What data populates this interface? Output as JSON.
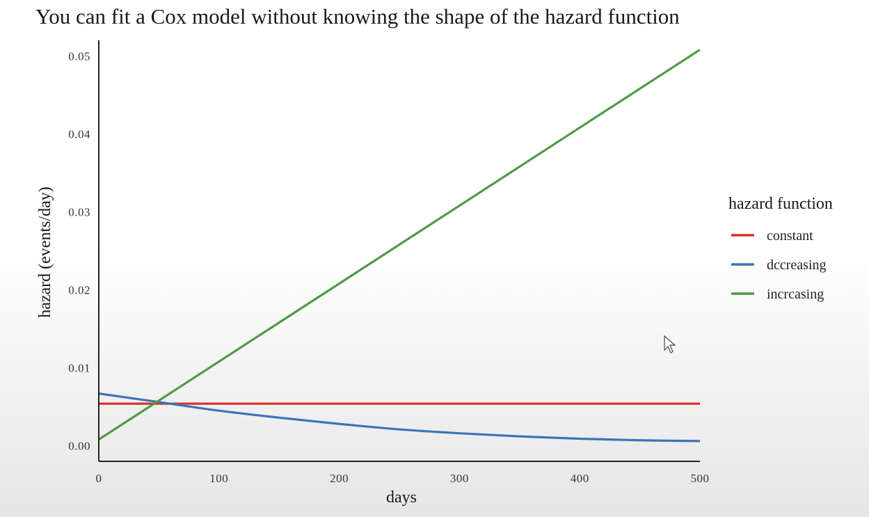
{
  "title": "You can fit a Cox model without knowing the shape of the hazard function",
  "chart_data": {
    "type": "line",
    "title": "You can fit a Cox model without knowing the shape of the hazard function",
    "xlabel": "days",
    "ylabel": "hazard (events/day)",
    "xlim": [
      0,
      500
    ],
    "ylim": [
      -0.002,
      0.052
    ],
    "x_ticks": [
      "0",
      "100",
      "200",
      "300",
      "400",
      "500"
    ],
    "x_tick_values": [
      0,
      100,
      200,
      300,
      400,
      500
    ],
    "y_ticks": [
      "0.00",
      "0.01",
      "0.02",
      "0.03",
      "0.04",
      "0.05"
    ],
    "y_tick_values": [
      0,
      0.01,
      0.02,
      0.03,
      0.04,
      0.05
    ],
    "grid": false,
    "legend": {
      "title": "hazard function",
      "placement": "right"
    },
    "series": [
      {
        "name": "constant",
        "color": "#d7342a",
        "x": [
          0,
          100,
          200,
          300,
          400,
          500
        ],
        "y": [
          0.0054,
          0.0054,
          0.0054,
          0.0054,
          0.0054,
          0.0054
        ]
      },
      {
        "name": "decreasing",
        "color": "#3a74b6",
        "x": [
          0,
          50,
          100,
          150,
          200,
          250,
          300,
          350,
          400,
          450,
          500
        ],
        "y": [
          0.0067,
          0.0056,
          0.0045,
          0.0036,
          0.0028,
          0.0021,
          0.0016,
          0.0012,
          0.0009,
          0.0007,
          0.0006
        ]
      },
      {
        "name": "increasing",
        "color": "#4e9a45",
        "x": [
          0,
          500
        ],
        "y": [
          0.0008,
          0.0508
        ]
      }
    ]
  },
  "legend_labels": [
    "constant",
    "dccreasing",
    "incrcasing"
  ],
  "cursor": "pointer-cursor-icon"
}
